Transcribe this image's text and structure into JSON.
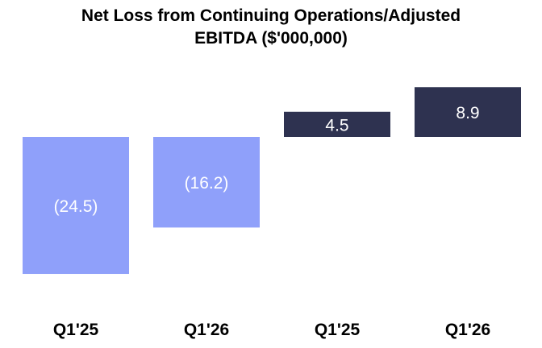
{
  "colors": {
    "net_loss": "#8FA0FA",
    "adjusted_ebitda": "#2E3250",
    "label_text": "#FFFFFF",
    "axis_text": "#000000",
    "background": "#FFFFFF"
  },
  "chart_data": {
    "type": "bar",
    "title_line1": "Net Loss from Continuing Operations/Adjusted",
    "title_line2": "EBITDA ($'000,000)",
    "xlabel": "",
    "ylabel": "",
    "grid": false,
    "legend": "none",
    "ylim": [
      -28,
      11
    ],
    "categories": [
      "Q1'25",
      "Q1'26",
      "Q1'25",
      "Q1'26"
    ],
    "values": [
      -24.5,
      -16.2,
      4.5,
      8.9
    ],
    "value_labels": [
      "(24.5)",
      "(16.2)",
      "4.5",
      "8.9"
    ],
    "bar_colors": [
      "#8FA0FA",
      "#8FA0FA",
      "#2E3250",
      "#2E3250"
    ]
  }
}
